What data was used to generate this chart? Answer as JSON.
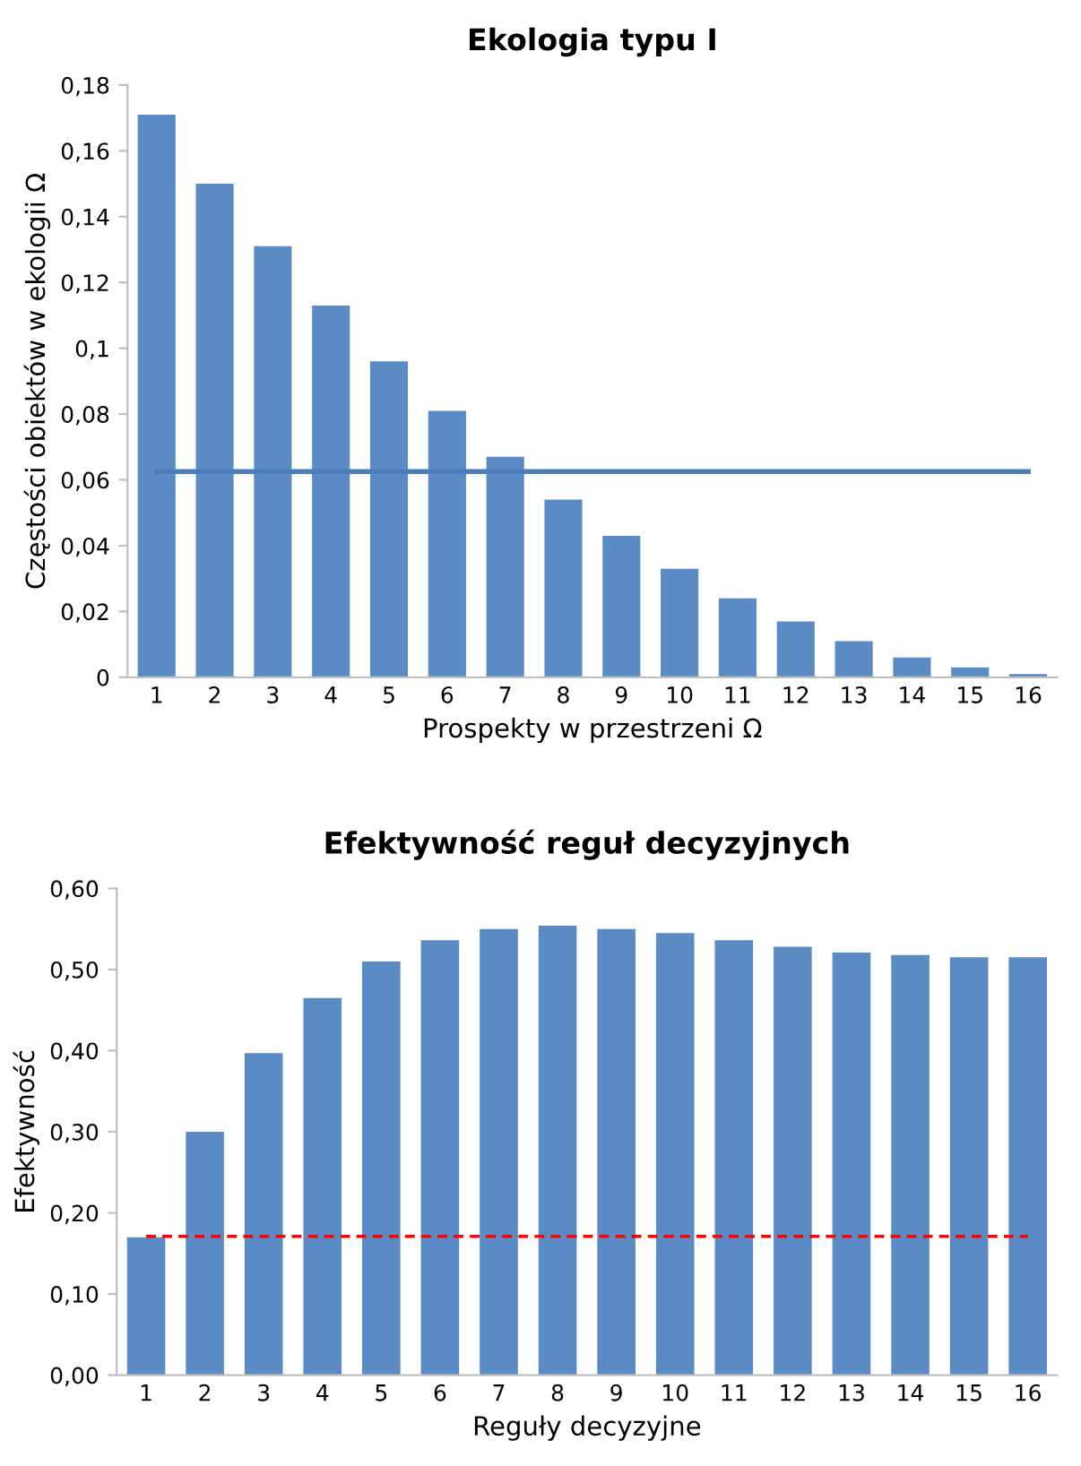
{
  "chart_data": [
    {
      "type": "bar",
      "title": "Ekologia typu I",
      "xlabel": "Prospekty w przestrzeni Ω",
      "ylabel": "Częstości obiektów w ekologii Ω",
      "categories": [
        "1",
        "2",
        "3",
        "4",
        "5",
        "6",
        "7",
        "8",
        "9",
        "10",
        "11",
        "12",
        "13",
        "14",
        "15",
        "16"
      ],
      "values": [
        0.171,
        0.15,
        0.131,
        0.113,
        0.096,
        0.081,
        0.067,
        0.054,
        0.043,
        0.033,
        0.024,
        0.017,
        0.011,
        0.006,
        0.003,
        0.001
      ],
      "color": "#5b8bc5",
      "ylim": [
        0,
        0.18
      ],
      "yticks": [
        {
          "value": 0,
          "label": "0"
        },
        {
          "value": 0.02,
          "label": "0,02"
        },
        {
          "value": 0.04,
          "label": "0,04"
        },
        {
          "value": 0.06,
          "label": "0,06"
        },
        {
          "value": 0.08,
          "label": "0,08"
        },
        {
          "value": 0.1,
          "label": "0,1"
        },
        {
          "value": 0.12,
          "label": "0,12"
        },
        {
          "value": 0.14,
          "label": "0,14"
        },
        {
          "value": 0.16,
          "label": "0,16"
        },
        {
          "value": 0.18,
          "label": "0,18"
        }
      ],
      "ref_lines": [
        {
          "axis": "y",
          "value": 0.0625,
          "label": null,
          "color": "#4a7ebb",
          "line_style": "solid"
        }
      ],
      "grid": false,
      "legend": false
    },
    {
      "type": "bar",
      "title": "Efektywność reguł decyzyjnych",
      "xlabel": "Reguły decyzyjne",
      "ylabel": "Efektywność",
      "categories": [
        "1",
        "2",
        "3",
        "4",
        "5",
        "6",
        "7",
        "8",
        "9",
        "10",
        "11",
        "12",
        "13",
        "14",
        "15",
        "16"
      ],
      "values": [
        0.17,
        0.3,
        0.397,
        0.465,
        0.51,
        0.536,
        0.55,
        0.554,
        0.55,
        0.545,
        0.536,
        0.528,
        0.521,
        0.518,
        0.515,
        0.515
      ],
      "color": "#5b8bc5",
      "ylim": [
        0,
        0.6
      ],
      "yticks": [
        {
          "value": 0,
          "label": "0,00"
        },
        {
          "value": 0.1,
          "label": "0,10"
        },
        {
          "value": 0.2,
          "label": "0,20"
        },
        {
          "value": 0.3,
          "label": "0,30"
        },
        {
          "value": 0.4,
          "label": "0,40"
        },
        {
          "value": 0.5,
          "label": "0,50"
        },
        {
          "value": 0.6,
          "label": "0,60"
        }
      ],
      "ref_lines": [
        {
          "axis": "y",
          "value": 0.171,
          "label": null,
          "color": "#ff0000",
          "line_style": "dashed"
        }
      ],
      "grid": false,
      "legend": false
    }
  ]
}
